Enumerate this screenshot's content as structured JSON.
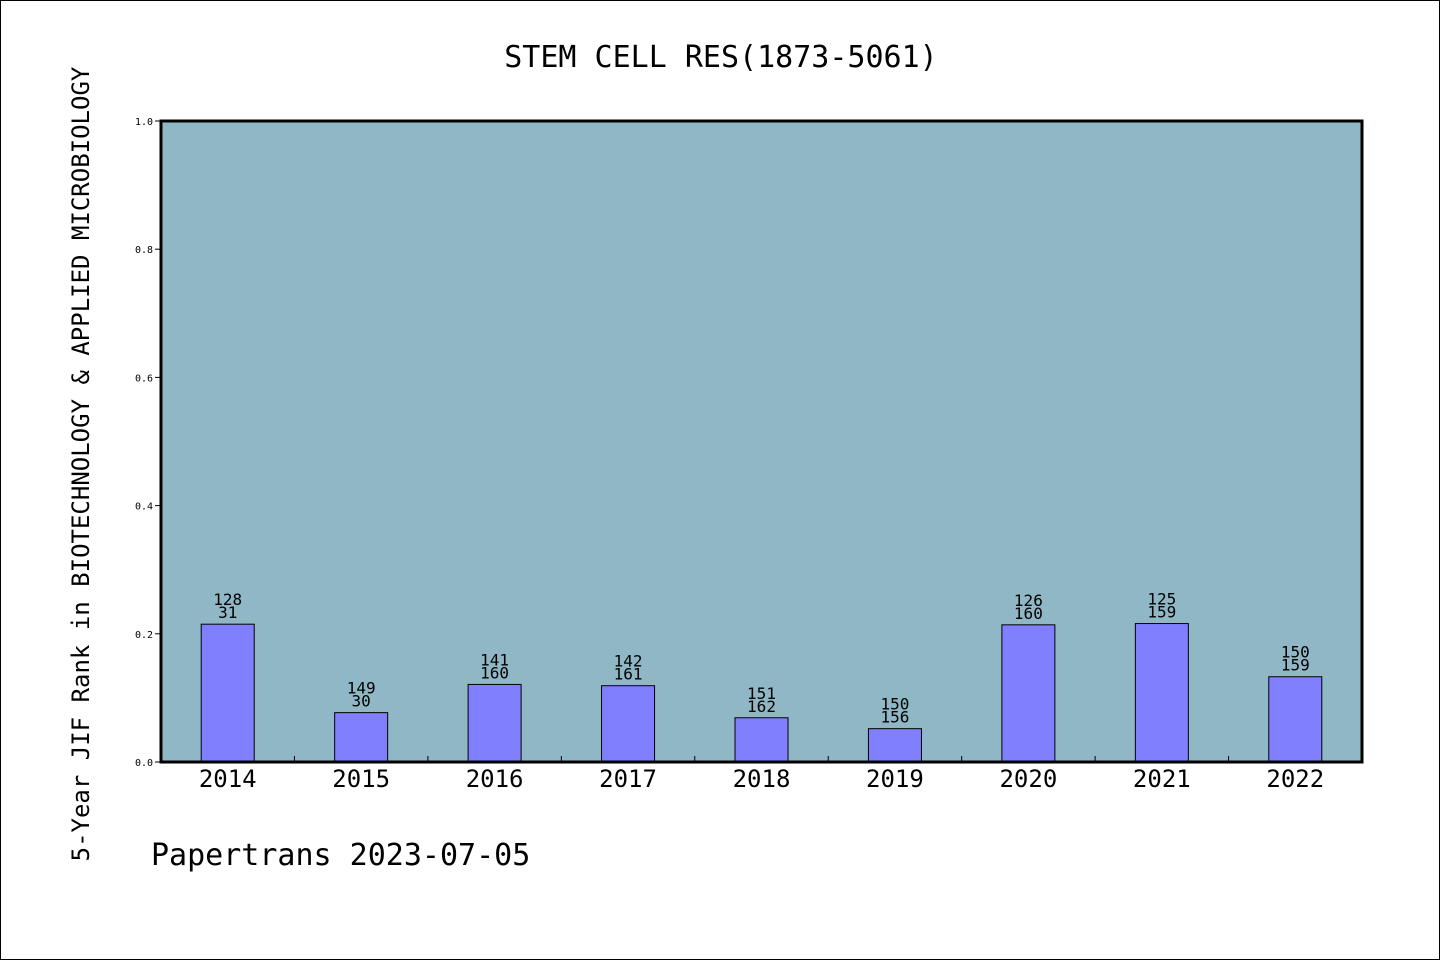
{
  "chart_data": {
    "type": "bar",
    "title": "STEM CELL RES(1873-5061)",
    "xlabel": "",
    "ylabel": "5-Year JIF Rank in BIOTECHNOLOGY & APPLIED MICROBIOLOGY",
    "ylim": [
      0,
      1.0
    ],
    "yticks": [
      "0.0",
      "0.2",
      "0.4",
      "0.6",
      "0.8",
      "1.0"
    ],
    "categories": [
      "2014",
      "2015",
      "2016",
      "2017",
      "2018",
      "2019",
      "2020",
      "2021",
      "2022"
    ],
    "values": [
      0.215,
      0.077,
      0.121,
      0.119,
      0.069,
      0.052,
      0.214,
      0.216,
      0.133
    ],
    "labels": [
      [
        "128",
        "31"
      ],
      [
        "149",
        "30"
      ],
      [
        "141",
        "160"
      ],
      [
        "142",
        "161"
      ],
      [
        "151",
        "162"
      ],
      [
        "150",
        "156"
      ],
      [
        "126",
        "160"
      ],
      [
        "125",
        "159"
      ],
      [
        "150",
        "159"
      ]
    ],
    "grid": false,
    "colors": {
      "plot_background": "#8fb7c5",
      "bar_fill": "#8080ff",
      "bar_stroke": "#000000"
    }
  },
  "footer": "Papertrans 2023-07-05"
}
